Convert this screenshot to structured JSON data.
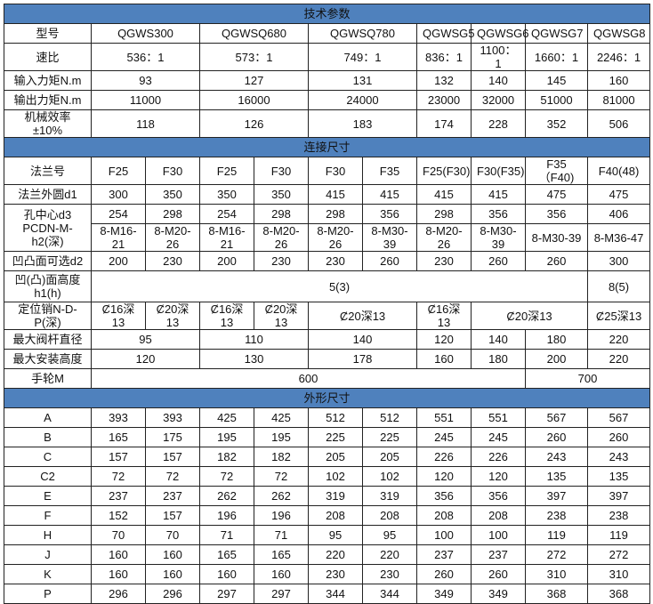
{
  "section_tech": "技术参数",
  "tech_rows": [
    [
      "型号",
      "QGWS300",
      "QGWSQ680",
      "QGWSQ780",
      "QGWSG5",
      "QGWSG6",
      "QGWSG7",
      "QGWSG8"
    ],
    [
      "速比",
      "536：1",
      "573：1",
      "749：1",
      "836：1",
      "1100：1",
      "1660：1",
      "2246：1"
    ],
    [
      "输入力矩N.m",
      "93",
      "127",
      "131",
      "132",
      "140",
      "145",
      "160"
    ],
    [
      "输出力矩N.m",
      "11000",
      "16000",
      "24000",
      "23000",
      "32000",
      "51000",
      "81000"
    ],
    [
      "机械效率±10%",
      "118",
      "126",
      "183",
      "174",
      "228",
      "352",
      "506"
    ]
  ],
  "section_connection": "连接尺寸",
  "connection_rows": [
    [
      "法兰号",
      "F25",
      "F30",
      "F25",
      "F30",
      "F30",
      "F35",
      "F25(F30)",
      "F30(F35)",
      "F35（F40)",
      "F40(48)"
    ],
    [
      "法兰外圆d1",
      "300",
      "350",
      "350",
      "350",
      "415",
      "415",
      "415",
      "415",
      "475",
      "475"
    ],
    [
      "孔中心d3 PCDN-M-h2(深)",
      "254",
      "298",
      "254",
      "298",
      "298",
      "356",
      "298",
      "356",
      "356",
      "406"
    ],
    [
      "8-M16-21",
      "8-M20-26",
      "8-M16-21",
      "8-M20-26",
      "8-M20-26",
      "8-M30-39",
      "8-M20-26",
      "8-M30-39",
      "8-M30-39",
      "8-M36-47"
    ],
    [
      "凹凸面可选d2",
      "200",
      "230",
      "200",
      "230",
      "230",
      "260",
      "230",
      "260",
      "260",
      "300"
    ],
    [
      "凹(凸)面高度h1(h)",
      "5(3)",
      "8(5)"
    ],
    [
      "定位销N-D-P(深)",
      "Ȼ16深13",
      "Ȼ20深13",
      "Ȼ16深13",
      "Ȼ20深13",
      "Ȼ20深13",
      "Ȼ16深13",
      "Ȼ20深13",
      "Ȼ25深13"
    ],
    [
      "最大阀杆直径",
      "95",
      "110",
      "140",
      "120",
      "140",
      "180",
      "220"
    ],
    [
      "最大安装高度",
      "120",
      "130",
      "178",
      "160",
      "180",
      "200",
      "220"
    ],
    [
      "手轮M",
      "600",
      "700"
    ]
  ],
  "section_outline": "外形尺寸",
  "outline_rows": [
    [
      "A",
      "393",
      "393",
      "425",
      "425",
      "512",
      "512",
      "551",
      "551",
      "567",
      "567"
    ],
    [
      "B",
      "165",
      "175",
      "195",
      "195",
      "225",
      "225",
      "245",
      "245",
      "260",
      "260"
    ],
    [
      "C",
      "157",
      "157",
      "182",
      "182",
      "205",
      "205",
      "226",
      "226",
      "243",
      "243"
    ],
    [
      "C2",
      "72",
      "72",
      "72",
      "72",
      "102",
      "102",
      "120",
      "120",
      "135",
      "135"
    ],
    [
      "E",
      "237",
      "237",
      "262",
      "262",
      "319",
      "319",
      "356",
      "356",
      "397",
      "397"
    ],
    [
      "F",
      "152",
      "157",
      "196",
      "196",
      "208",
      "208",
      "208",
      "208",
      "238",
      "238"
    ],
    [
      "H",
      "70",
      "70",
      "71",
      "71",
      "95",
      "95",
      "100",
      "100",
      "119",
      "119"
    ],
    [
      "J",
      "160",
      "160",
      "165",
      "165",
      "220",
      "220",
      "237",
      "237",
      "272",
      "272"
    ],
    [
      "K",
      "160",
      "160",
      "160",
      "160",
      "230",
      "230",
      "260",
      "260",
      "310",
      "310"
    ],
    [
      "P",
      "296",
      "296",
      "297",
      "297",
      "344",
      "344",
      "349",
      "349",
      "368",
      "368"
    ]
  ]
}
